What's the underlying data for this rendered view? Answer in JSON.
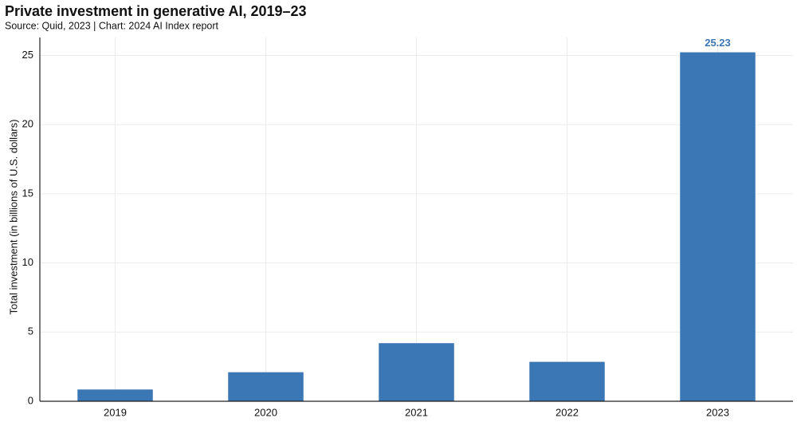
{
  "chart_data": {
    "type": "bar",
    "title": "Private investment in generative AI, 2019–23",
    "subtitle": "Source: Quid, 2023 | Chart: 2024 AI Index report",
    "y_label": "Total investment (in billions of U.S. dollars)",
    "categories": [
      "2019",
      "2020",
      "2021",
      "2022",
      "2023"
    ],
    "values": [
      0.85,
      2.1,
      4.2,
      2.85,
      25.23
    ],
    "value_labels": [
      null,
      null,
      null,
      null,
      "25.23"
    ],
    "color": "#3b76b5",
    "ylim": [
      0,
      26.3
    ],
    "yticks": [
      0,
      5,
      10,
      15,
      20,
      25
    ],
    "grid": true
  }
}
